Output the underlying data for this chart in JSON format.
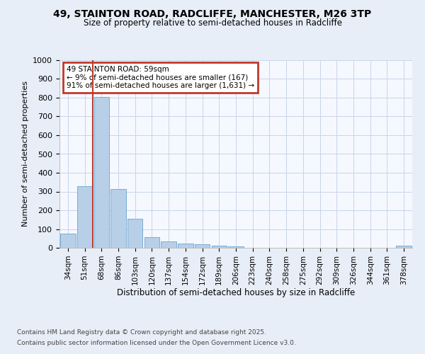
{
  "title_line1": "49, STAINTON ROAD, RADCLIFFE, MANCHESTER, M26 3TP",
  "title_line2": "Size of property relative to semi-detached houses in Radcliffe",
  "xlabel": "Distribution of semi-detached houses by size in Radcliffe",
  "ylabel": "Number of semi-detached properties",
  "categories": [
    "34sqm",
    "51sqm",
    "68sqm",
    "86sqm",
    "103sqm",
    "120sqm",
    "137sqm",
    "154sqm",
    "172sqm",
    "189sqm",
    "206sqm",
    "223sqm",
    "240sqm",
    "258sqm",
    "275sqm",
    "292sqm",
    "309sqm",
    "326sqm",
    "344sqm",
    "361sqm",
    "378sqm"
  ],
  "values": [
    75,
    330,
    805,
    315,
    155,
    57,
    33,
    22,
    17,
    12,
    7,
    0,
    0,
    0,
    0,
    0,
    0,
    0,
    0,
    0,
    10
  ],
  "bar_color": "#b8cfe8",
  "bar_edge_color": "#7aadd4",
  "vline_x": 1.5,
  "vline_color": "#c0392b",
  "annotation_title": "49 STAINTON ROAD: 59sqm",
  "annotation_line1": "← 9% of semi-detached houses are smaller (167)",
  "annotation_line2": "91% of semi-detached houses are larger (1,631) →",
  "annotation_box_color": "#c0392b",
  "footer_line1": "Contains HM Land Registry data © Crown copyright and database right 2025.",
  "footer_line2": "Contains public sector information licensed under the Open Government Licence v3.0.",
  "ylim": [
    0,
    1000
  ],
  "bg_color": "#e8eef8",
  "plot_bg_color": "#f5f8ff",
  "grid_color": "#c8d4e8"
}
